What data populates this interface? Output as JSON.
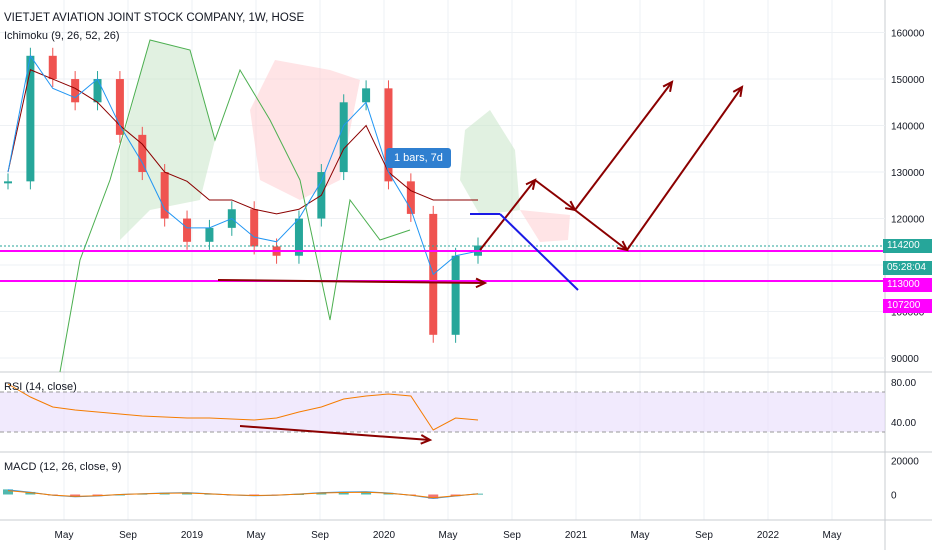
{
  "chart_data": [
    {
      "type": "line",
      "title": "VIETJET AVIATION JOINT STOCK COMPANY, 1W, HOSE",
      "indicator": "Ichimoku (9, 26, 52, 26)",
      "ylim": [
        87000,
        167000
      ],
      "y_ticks": [
        160000,
        150000,
        140000,
        130000,
        120000,
        110000,
        100000,
        90000
      ],
      "y_tick_labels": [
        "160000",
        "150000",
        "140000",
        "130000",
        "120000",
        "",
        "100000",
        "90000"
      ],
      "price_tags": [
        {
          "label": "114200",
          "value": 114200,
          "color": "#26a69a"
        },
        {
          "label": "05:28:04",
          "value": 109200,
          "color": "#26a69a"
        },
        {
          "label": "113000",
          "value": 105000,
          "color": "#ff00ff"
        },
        {
          "label": "107200",
          "value": 101500,
          "color": "#ff00ff"
        }
      ],
      "horizontal_levels": [
        113000,
        107200
      ],
      "tooltip": "1 bars, 7d",
      "series": [
        {
          "name": "Price",
          "values": [
            128000,
            155000,
            150000,
            145000,
            150000,
            138000,
            130000,
            120000,
            115000,
            118000,
            122000,
            114000,
            112000,
            120000,
            130000,
            145000,
            148000,
            128000,
            121000,
            95000,
            112000,
            114200
          ]
        },
        {
          "name": "Kijun",
          "values": [
            130000,
            152000,
            150000,
            148000,
            145000,
            140000,
            136000,
            130000,
            128000,
            124000,
            124000,
            122000,
            121000,
            122000,
            125000,
            135000,
            140000,
            130000,
            126000,
            124000,
            124000,
            124000
          ]
        },
        {
          "name": "Tenkan",
          "values": [
            130000,
            155000,
            148000,
            146000,
            150000,
            140000,
            132000,
            122000,
            118000,
            118000,
            120000,
            116000,
            115000,
            120000,
            128000,
            140000,
            145000,
            130000,
            122000,
            108000,
            112000,
            113000
          ]
        }
      ]
    },
    {
      "type": "line",
      "title": "RSI (14, close)",
      "ylim": [
        10,
        90
      ],
      "y_ticks": [
        80,
        40
      ],
      "y_tick_labels": [
        "80.00",
        "40.00"
      ],
      "band": [
        30,
        70
      ],
      "values": [
        78,
        65,
        55,
        52,
        50,
        48,
        46,
        45,
        44,
        44,
        43,
        42,
        44,
        50,
        55,
        63,
        66,
        68,
        66,
        32,
        44,
        42
      ]
    },
    {
      "type": "bar",
      "title": "MACD (12, 26, close, 9)",
      "ylim": [
        -15000,
        25000
      ],
      "y_ticks": [
        20000,
        0
      ],
      "y_tick_labels": [
        "20000",
        "0"
      ],
      "values": [
        3000,
        1500,
        -500,
        -1500,
        -1000,
        0,
        500,
        1000,
        1200,
        500,
        -300,
        -800,
        -500,
        300,
        1200,
        1600,
        1800,
        1000,
        -500,
        -2500,
        -1000,
        500
      ]
    }
  ],
  "x_axis": {
    "labels": [
      "May",
      "Sep",
      "2019",
      "May",
      "Sep",
      "2020",
      "May",
      "Sep",
      "2021",
      "May",
      "Sep",
      "2022",
      "May"
    ]
  },
  "colors": {
    "up": "#26a69a",
    "down": "#ef5350",
    "cloud_up": "#c8e6c9",
    "cloud_down": "#ffcdd2",
    "magenta": "#ff00ff",
    "arrow": "#8b0000",
    "projection": "#1a1ae6",
    "rsi_band": "#e8dcfc"
  }
}
